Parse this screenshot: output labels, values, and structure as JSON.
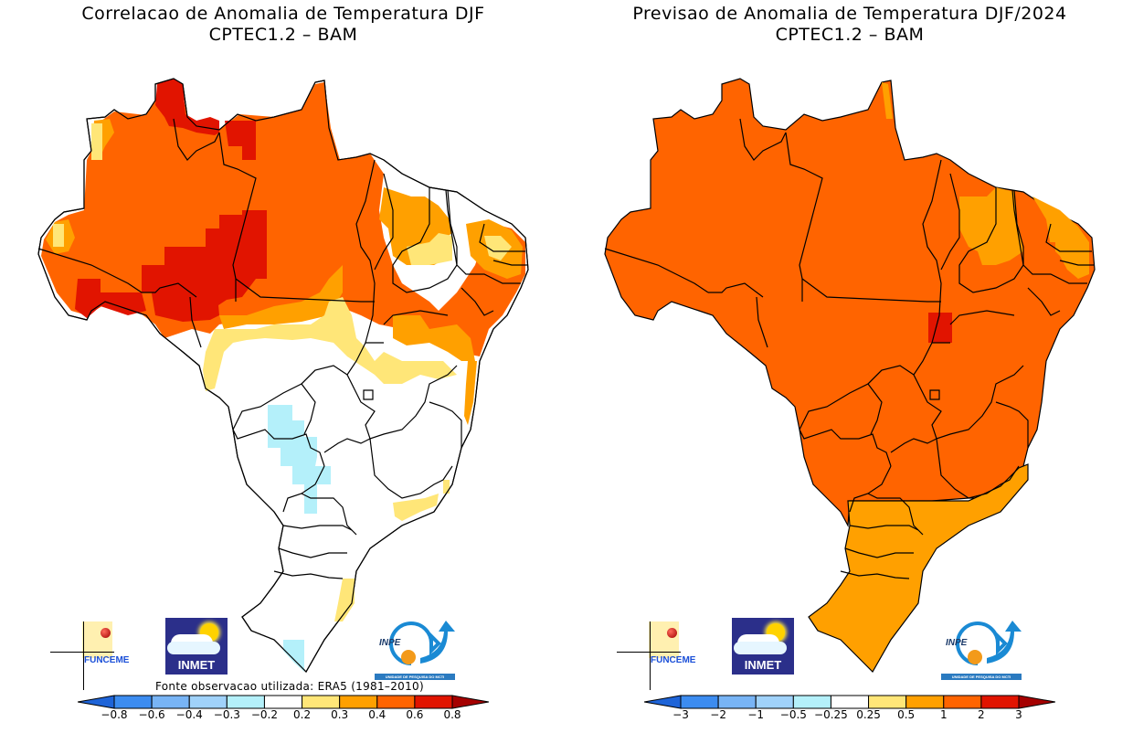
{
  "left_panel": {
    "title_line1": "Correlacao de Anomalia de Temperatura DJF",
    "title_line2": "CPTEC1.2 – BAM",
    "source_note": "Fonte observacao utilizada: ERA5 (1981–2010)",
    "colorbar": {
      "labels": [
        "−0.8",
        "−0.6",
        "−0.4",
        "−0.3",
        "−0.2",
        "0.2",
        "0.3",
        "0.4",
        "0.6",
        "0.8"
      ],
      "colors": [
        "#1e64d8",
        "#3c8cf0",
        "#78b4f5",
        "#a0d2fa",
        "#b4f0fa",
        "#ffffff",
        "#ffe678",
        "#ffa000",
        "#ff6400",
        "#e11400",
        "#a50000"
      ]
    }
  },
  "right_panel": {
    "title_line1": "Previsao de Anomalia de Temperatura DJF/2024",
    "title_line2": "CPTEC1.2 – BAM",
    "colorbar": {
      "labels": [
        "−3",
        "−2",
        "−1",
        "−0.5",
        "−0.25",
        "0.25",
        "0.5",
        "1",
        "2",
        "3"
      ],
      "colors": [
        "#1e64d8",
        "#3c8cf0",
        "#78b4f5",
        "#a0d2fa",
        "#b4f0fa",
        "#ffffff",
        "#ffe678",
        "#ffa000",
        "#ff6400",
        "#e11400",
        "#a50000"
      ]
    }
  },
  "logos": {
    "funceme": "FUNCEME",
    "inmet": "INMET",
    "inpe": "INPE",
    "inpe_sub": "UNIDADE DE PESQUISA DO MCTI"
  },
  "chart_data": [
    {
      "type": "heatmap",
      "title": "Correlacao de Anomalia de Temperatura DJF — CPTEC1.2 – BAM",
      "region": "Brazil",
      "variable": "correlation of temperature anomaly",
      "colorbar_bounds": [
        -0.8,
        -0.6,
        -0.4,
        -0.3,
        -0.2,
        0.2,
        0.3,
        0.4,
        0.6,
        0.8
      ],
      "regions": [
        {
          "area": "Roraima / north Para / Amapa north",
          "class": "0.6 to 0.8"
        },
        {
          "area": "Amazonas / Para / Maranhao (most)",
          "class": "0.4 to 0.6"
        },
        {
          "area": "Rondonia / south Amazonas / north Mato Grosso",
          "class": "0.6 to 0.8"
        },
        {
          "area": "Northeast interior (Piaui, Ceara, Paraiba)",
          "class": "0.3 to 0.4"
        },
        {
          "area": "Tocantins / Bahia north / east Mato Grosso",
          "class": "0.2 to 0.3"
        },
        {
          "area": "Center-West, Southeast, South (most)",
          "class": "-0.2 to 0.2"
        },
        {
          "area": "Mato Grosso do Sul / Goias border, west Parana",
          "class": "-0.3 to -0.2"
        },
        {
          "area": "Rio Grande do Sul southwest tip",
          "class": "-0.3 to -0.2"
        },
        {
          "area": "Sao Paulo / Rio coast, Santa Catarina coast",
          "class": "0.2 to 0.3"
        }
      ],
      "note": "Fonte observacao utilizada: ERA5 (1981–2010)"
    },
    {
      "type": "heatmap",
      "title": "Previsao de Anomalia de Temperatura DJF/2024 — CPTEC1.2 – BAM",
      "region": "Brazil",
      "variable": "temperature anomaly (°C)",
      "colorbar_bounds": [
        -3,
        -2,
        -1,
        -0.5,
        -0.25,
        0.25,
        0.5,
        1,
        2,
        3
      ],
      "regions": [
        {
          "area": "North, Center-West, Southeast, most Northeast",
          "class": "1 to 2"
        },
        {
          "area": "Tocantins central block",
          "class": "2 to 3"
        },
        {
          "area": "Piaui / Ceara / Rio Grande do Norte portions",
          "class": "0.5 to 1"
        },
        {
          "area": "Amapa north tip",
          "class": "0.5 to 1"
        },
        {
          "area": "South (Parana, Santa Catarina, Rio Grande do Sul), coastal SP/RJ",
          "class": "0.5 to 1"
        }
      ]
    }
  ]
}
